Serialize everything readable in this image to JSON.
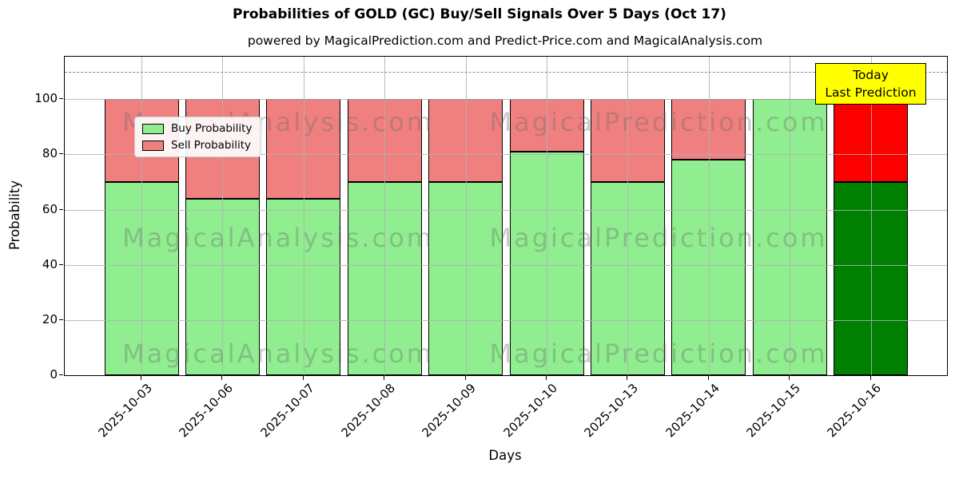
{
  "figure": {
    "title": "Probabilities of GOLD (GC) Buy/Sell Signals Over 5 Days (Oct 17)",
    "subtitle": "powered by MagicalPrediction.com and Predict-Price.com and MagicalAnalysis.com"
  },
  "axes": {
    "xlabel": "Days",
    "ylabel": "Probability",
    "ytick_labels": [
      "0",
      "20",
      "40",
      "60",
      "80",
      "100"
    ]
  },
  "legend": {
    "items": [
      {
        "label": "Buy Probability",
        "color": "#90EE90"
      },
      {
        "label": "Sell Probability",
        "color": "#F08080"
      }
    ]
  },
  "annotation": {
    "line1": "Today",
    "line2": "Last Prediction",
    "bg_color": "#FFFF00"
  },
  "watermarks": {
    "left_text": "MagicalAnalysis.com",
    "right_text": "MagicalPrediction.com"
  },
  "chart_data": {
    "type": "bar",
    "stacked": true,
    "title": "Probabilities of GOLD (GC) Buy/Sell Signals Over 5 Days (Oct 17)",
    "subtitle": "powered by MagicalPrediction.com and Predict-Price.com and MagicalAnalysis.com",
    "xlabel": "Days",
    "ylabel": "Probability",
    "categories": [
      "2025-10-03",
      "2025-10-06",
      "2025-10-07",
      "2025-10-08",
      "2025-10-09",
      "2025-10-10",
      "2025-10-13",
      "2025-10-14",
      "2025-10-15",
      "2025-10-16"
    ],
    "series": [
      {
        "name": "Buy Probability",
        "values": [
          70,
          64,
          64,
          70,
          70,
          81,
          70,
          78,
          100,
          70
        ]
      },
      {
        "name": "Sell Probability",
        "values": [
          30,
          36,
          36,
          30,
          30,
          19,
          30,
          22,
          0,
          30
        ]
      }
    ],
    "yticks": [
      0,
      20,
      40,
      60,
      80,
      100
    ],
    "ylim": [
      0,
      115.4
    ],
    "grid": true,
    "legend_position": "upper left",
    "dashed_line_y": 110,
    "highlight_index": 9,
    "colors": {
      "buy": "#90EE90",
      "sell": "#F08080",
      "highlight_buy": "#008000",
      "highlight_sell": "#FF0000",
      "bar_edge": "#000000",
      "grid": "#B0B0B0",
      "dashed_line": "#8A8A8A",
      "annotation_bg": "#FFFF00"
    }
  }
}
